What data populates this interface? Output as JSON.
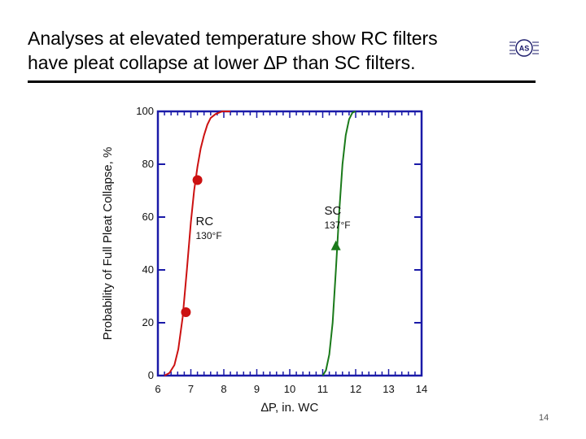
{
  "slide": {
    "title_line1": "Analyses at elevated temperature show RC filters",
    "title_line2": "have pleat collapse at lower ∆P than SC filters.",
    "slide_number": "14",
    "logo_text": "AS"
  },
  "colors": {
    "axis": "#1a1aa8",
    "rc": "#cc1111",
    "sc": "#1a7a1a",
    "text": "#111111"
  },
  "chart_data": {
    "type": "line",
    "xlabel": "∆P, in. WC",
    "ylabel": "Probability of Full Pleat Collapse, %",
    "xlim": [
      6,
      14
    ],
    "ylim": [
      0,
      100
    ],
    "xticks": [
      6,
      7,
      8,
      9,
      10,
      11,
      12,
      13,
      14
    ],
    "yticks": [
      0,
      20,
      40,
      60,
      80,
      100
    ],
    "grid": false,
    "series": [
      {
        "name": "RC",
        "label_line1": "RC",
        "label_line2": "130°F",
        "color": "#cc1111",
        "x": [
          6.2,
          6.35,
          6.5,
          6.62,
          6.75,
          6.88,
          7.0,
          7.1,
          7.2,
          7.3,
          7.4,
          7.5,
          7.6,
          7.75,
          7.95,
          8.2
        ],
        "y": [
          0,
          1,
          4,
          10,
          22,
          40,
          58,
          70,
          79,
          86,
          91,
          95,
          97.5,
          99,
          100,
          100
        ],
        "points": [
          {
            "x": 6.85,
            "y": 24,
            "marker": "circle"
          },
          {
            "x": 7.2,
            "y": 74,
            "marker": "circle"
          }
        ]
      },
      {
        "name": "SC",
        "label_line1": "SC",
        "label_line2": "137°F",
        "color": "#1a7a1a",
        "x": [
          11.0,
          11.1,
          11.2,
          11.3,
          11.4,
          11.5,
          11.6,
          11.7,
          11.8,
          11.9,
          12.0
        ],
        "y": [
          0,
          2,
          8,
          20,
          40,
          62,
          80,
          91,
          97,
          99.5,
          100
        ],
        "points": [
          {
            "x": 11.4,
            "y": 49,
            "marker": "triangle"
          }
        ]
      }
    ]
  }
}
